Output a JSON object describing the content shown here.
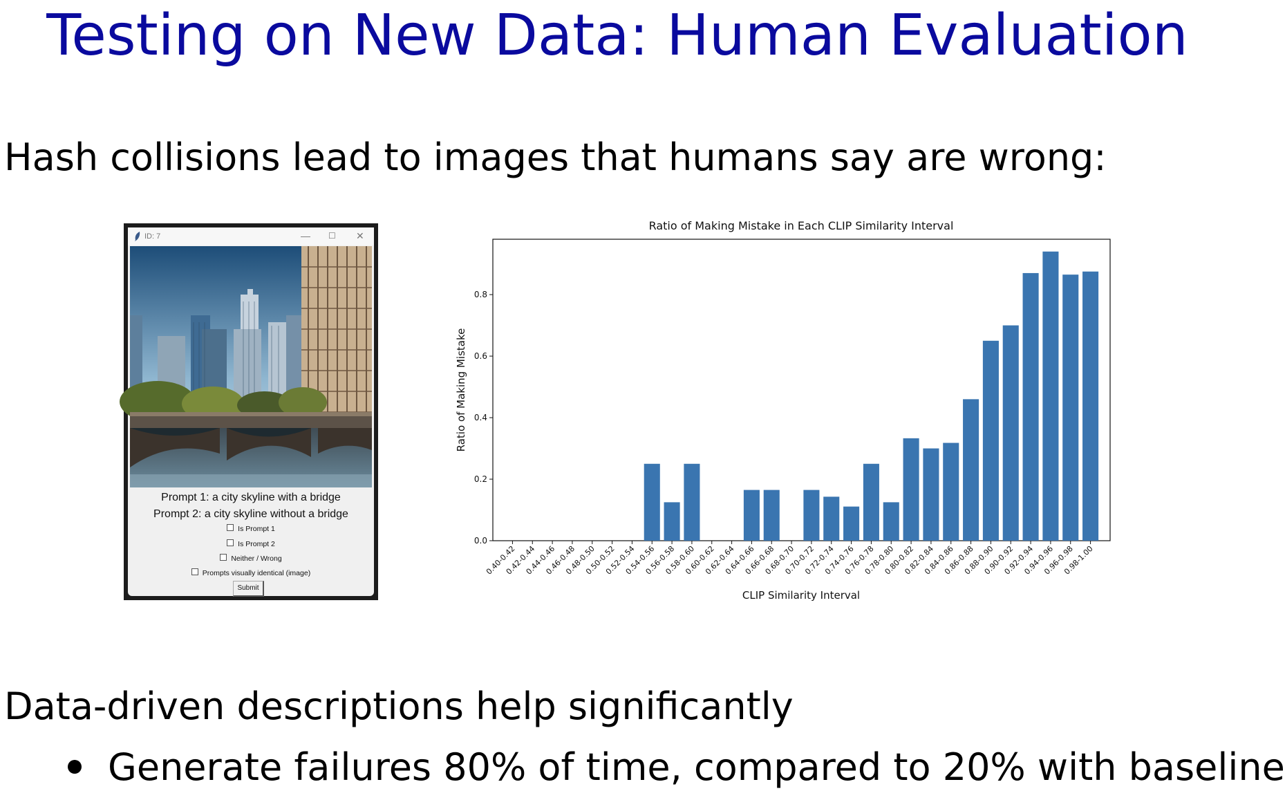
{
  "slide": {
    "title": "Testing on New Data: Human Evaluation",
    "intro": "Hash collisions lead to images that humans say are wrong:",
    "outro": "Data-driven descriptions help significantly",
    "bullet": "Generate failures 80% of time, compared to 20% with baseline"
  },
  "dialog": {
    "window_title": "ID: 7",
    "minimize": "—",
    "maximize": "☐",
    "close": "✕",
    "prompt1": "Prompt 1: a city skyline with a bridge",
    "prompt2": "Prompt 2: a city skyline without a bridge",
    "options": [
      "Is Prompt 1",
      "Is Prompt 2",
      "Neither / Wrong",
      "Prompts visually identical (image)"
    ],
    "submit": "Submit"
  },
  "chart_data": {
    "type": "bar",
    "title": "Ratio of Making Mistake in Each CLIP Similarity Interval",
    "xlabel": "CLIP Similarity Interval",
    "ylabel": "Ratio of Making Mistake",
    "ylim": [
      0.0,
      0.98
    ],
    "yticks": [
      "0.0",
      "0.2",
      "0.4",
      "0.6",
      "0.8"
    ],
    "grid": false,
    "bar_color": "#3a75b0",
    "categories": [
      "0.40-0.42",
      "0.42-0.44",
      "0.44-0.46",
      "0.46-0.48",
      "0.48-0.50",
      "0.50-0.52",
      "0.52-0.54",
      "0.54-0.56",
      "0.56-0.58",
      "0.58-0.60",
      "0.60-0.62",
      "0.62-0.64",
      "0.64-0.66",
      "0.66-0.68",
      "0.68-0.70",
      "0.70-0.72",
      "0.72-0.74",
      "0.74-0.76",
      "0.76-0.78",
      "0.78-0.80",
      "0.80-0.82",
      "0.82-0.84",
      "0.84-0.86",
      "0.86-0.88",
      "0.88-0.90",
      "0.90-0.92",
      "0.92-0.94",
      "0.94-0.96",
      "0.96-0.98",
      "0.98-1.00"
    ],
    "values": [
      0,
      0,
      0,
      0,
      0,
      0,
      0,
      0.25,
      0.125,
      0.25,
      0,
      0,
      0.165,
      0.165,
      0,
      0.165,
      0.143,
      0.111,
      0.25,
      0.125,
      0.333,
      0.3,
      0.318,
      0.46,
      0.65,
      0.7,
      0.87,
      0.94,
      0.865,
      0.875
    ]
  }
}
